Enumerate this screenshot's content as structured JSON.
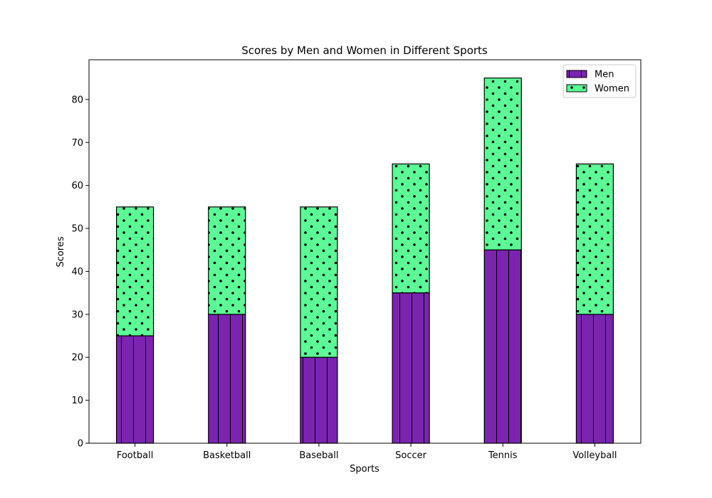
{
  "chart_data": {
    "type": "bar",
    "stacked": true,
    "title": "Scores by Men and Women in Different Sports",
    "xlabel": "Sports",
    "ylabel": "Scores",
    "categories": [
      "Football",
      "Basketball",
      "Baseball",
      "Soccer",
      "Tennis",
      "Volleyball"
    ],
    "series": [
      {
        "name": "Men",
        "values": [
          25,
          30,
          20,
          35,
          45,
          30
        ],
        "color": "#7b24b0",
        "hatch": "vertical-lines"
      },
      {
        "name": "Women",
        "values": [
          30,
          25,
          35,
          30,
          40,
          35
        ],
        "color": "#5cfa96",
        "hatch": "dots"
      }
    ],
    "ylim": [
      0,
      89.25
    ],
    "yticks": [
      0,
      10,
      20,
      30,
      40,
      50,
      60,
      70,
      80
    ],
    "grid": false,
    "legend_position": "top-right"
  }
}
